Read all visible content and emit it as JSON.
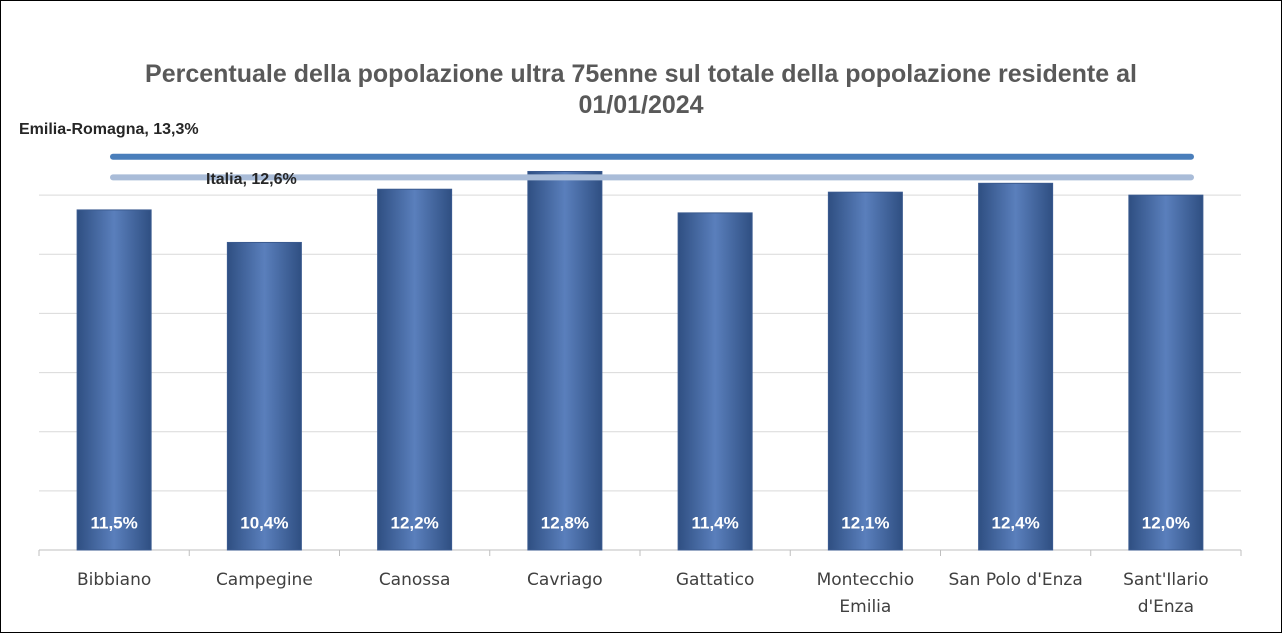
{
  "chart_data": {
    "type": "bar",
    "title": "Percentuale della popolazione ultra 75enne sul totale della popolazione residente al 01/01/2024",
    "categories": [
      "Bibbiano",
      "Campegine",
      "Canossa",
      "Cavriago",
      "Gattatico",
      "Montecchio Emilia",
      "San Polo d'Enza",
      "Sant'Ilario d'Enza"
    ],
    "values": [
      11.5,
      10.4,
      12.2,
      12.8,
      11.4,
      12.1,
      12.4,
      12.0
    ],
    "value_labels": [
      "11,5%",
      "10,4%",
      "12,2%",
      "12,8%",
      "11,4%",
      "12,1%",
      "12,4%",
      "12,0%"
    ],
    "color": "#4a6fab",
    "ylim": [
      0,
      14
    ],
    "yticks": [
      0,
      2,
      4,
      6,
      8,
      10,
      12
    ],
    "grid": true,
    "reference_lines": [
      {
        "label": "Emilia-Romagna, 13,3%",
        "value": 13.3,
        "color": "#4a7ebb"
      },
      {
        "label": "Italia, 12,6%",
        "value": 12.6,
        "color": "#a9bcd8"
      }
    ]
  }
}
